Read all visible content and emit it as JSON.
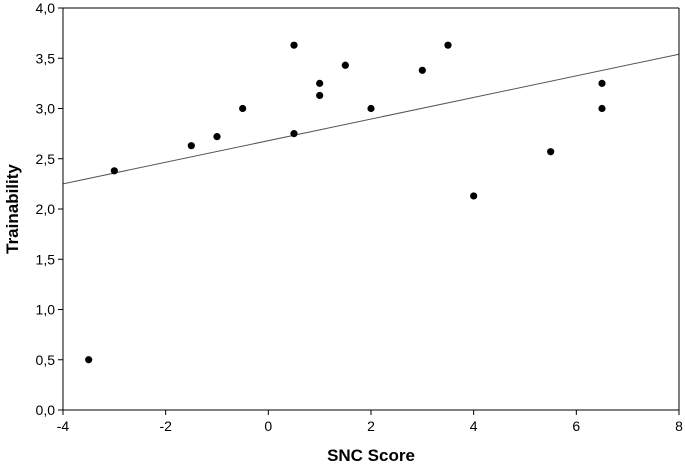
{
  "chart_data": {
    "type": "scatter",
    "xlabel": "SNC Score",
    "ylabel": "Trainability",
    "xlim": [
      -4,
      8
    ],
    "ylim": [
      0,
      4
    ],
    "x_ticks": [
      -4,
      -2,
      0,
      2,
      4,
      6,
      8
    ],
    "x_tick_labels": [
      "-4",
      "-2",
      "0",
      "2",
      "4",
      "6",
      "8"
    ],
    "y_ticks": [
      0,
      0.5,
      1,
      1.5,
      2,
      2.5,
      3,
      3.5,
      4
    ],
    "y_tick_labels": [
      "0,0",
      "0,5",
      "1,0",
      "1,5",
      "2,0",
      "2,5",
      "3,0",
      "3,5",
      "4,0"
    ],
    "grid": false,
    "points": [
      {
        "x": -3.5,
        "y": 0.5
      },
      {
        "x": -3.0,
        "y": 2.38
      },
      {
        "x": -1.5,
        "y": 2.63
      },
      {
        "x": -1.0,
        "y": 2.72
      },
      {
        "x": -0.5,
        "y": 3.0
      },
      {
        "x": 0.5,
        "y": 2.75
      },
      {
        "x": 0.5,
        "y": 3.63
      },
      {
        "x": 1.0,
        "y": 3.13
      },
      {
        "x": 1.0,
        "y": 3.25
      },
      {
        "x": 1.5,
        "y": 3.43
      },
      {
        "x": 2.0,
        "y": 3.0
      },
      {
        "x": 3.0,
        "y": 3.38
      },
      {
        "x": 3.5,
        "y": 3.63
      },
      {
        "x": 4.0,
        "y": 2.13
      },
      {
        "x": 5.5,
        "y": 2.57
      },
      {
        "x": 6.5,
        "y": 3.0
      },
      {
        "x": 6.5,
        "y": 3.25
      }
    ],
    "trendline": {
      "x": [
        -4,
        8
      ],
      "y": [
        2.25,
        3.54
      ]
    },
    "colors": {
      "points": "#000000",
      "trendline": "#555555",
      "axes": "#000000"
    }
  }
}
